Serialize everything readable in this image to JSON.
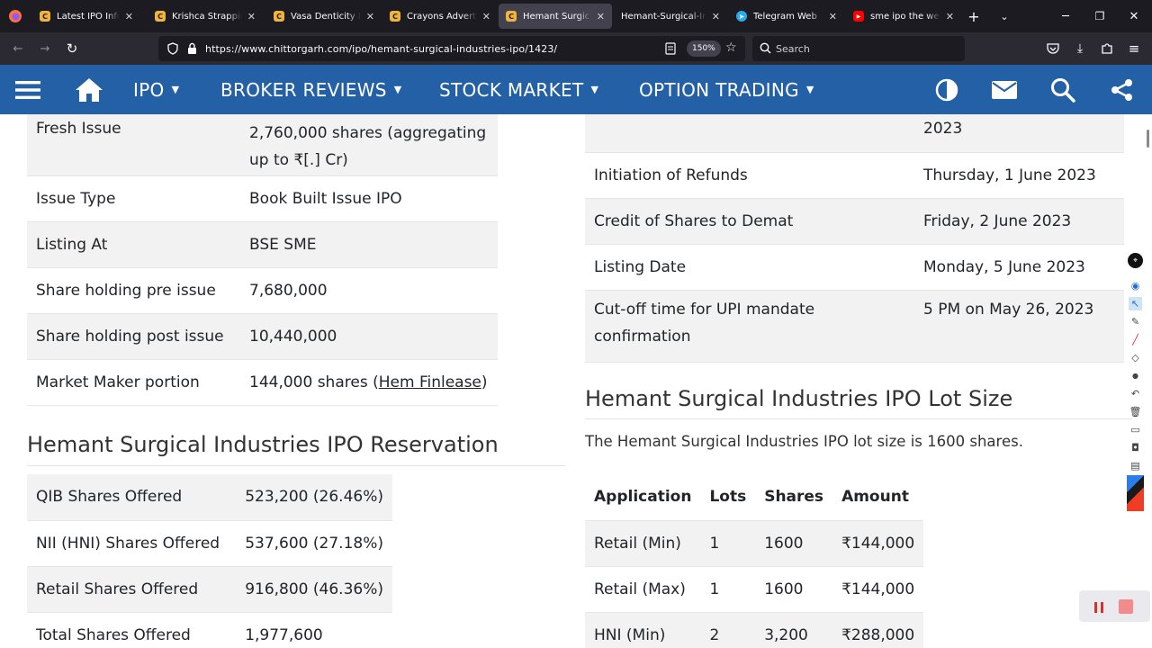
{
  "browser": {
    "tabs": [
      {
        "title": "Latest IPO Informa",
        "fav": "C",
        "favColor": "#f0b43c"
      },
      {
        "title": "Krishca Strapping",
        "fav": "C",
        "favColor": "#f0b43c"
      },
      {
        "title": "Vasa Denticity IPO",
        "fav": "C",
        "favColor": "#f0b43c"
      },
      {
        "title": "Crayons Advertisi",
        "fav": "C",
        "favColor": "#f0b43c"
      },
      {
        "title": "Hemant Surgical I",
        "fav": "C",
        "favColor": "#f0b43c"
      },
      {
        "title": "Hemant-Surgical-Indu",
        "fav": "",
        "favColor": ""
      },
      {
        "title": "Telegram Web",
        "fav": "",
        "favColor": "#2aabee"
      },
      {
        "title": "sme ipo the weal",
        "fav": "",
        "favColor": "#ff0000"
      }
    ],
    "url": "https://www.chittorgarh.com/ipo/hemant-surgical-industries-ipo/1423/",
    "zoom": "150%",
    "search_placeholder": "Search"
  },
  "site_nav": {
    "items": [
      "IPO",
      "BROKER REVIEWS",
      "STOCK MARKET",
      "OPTION TRADING"
    ]
  },
  "issue_table": [
    {
      "label": "Fresh Issue",
      "value": "2,760,000 shares (aggregating up to ₹[.] Cr)"
    },
    {
      "label": "Issue Type",
      "value": "Book Built Issue IPO"
    },
    {
      "label": "Listing At",
      "value": "BSE SME"
    },
    {
      "label": "Share holding pre issue",
      "value": "7,680,000"
    },
    {
      "label": "Share holding post issue",
      "value": "10,440,000"
    },
    {
      "label": "Market Maker portion",
      "value_prefix": "144,000 shares (",
      "value_link": "Hem Finlease",
      "value_suffix": ")"
    }
  ],
  "reservation": {
    "heading": "Hemant Surgical Industries IPO Reservation",
    "rows": [
      {
        "label": "QIB Shares Offered",
        "value": "523,200 (26.46%)"
      },
      {
        "label": "NII (HNI) Shares Offered",
        "value": "537,600 (27.18%)"
      },
      {
        "label": "Retail Shares Offered",
        "value": "916,800 (46.36%)"
      },
      {
        "label": "Total Shares Offered",
        "value": "1,977,600"
      }
    ]
  },
  "timeline": {
    "rows": [
      {
        "label": "",
        "value": "2023"
      },
      {
        "label": "Initiation of Refunds",
        "value": "Thursday, 1 June 2023"
      },
      {
        "label": "Credit of Shares to Demat",
        "value": "Friday, 2 June 2023"
      },
      {
        "label": "Listing Date",
        "value": "Monday, 5 June 2023"
      },
      {
        "label": "Cut-off time for UPI mandate confirmation",
        "value": "5 PM on May 26, 2023"
      }
    ]
  },
  "lot_size": {
    "heading": "Hemant Surgical Industries IPO Lot Size",
    "text": "The Hemant Surgical Industries IPO lot size is 1600 shares.",
    "headers": [
      "Application",
      "Lots",
      "Shares",
      "Amount"
    ],
    "rows": [
      [
        "Retail (Min)",
        "1",
        "1600",
        "₹144,000"
      ],
      [
        "Retail (Max)",
        "1",
        "1600",
        "₹144,000"
      ],
      [
        "HNI (Min)",
        "2",
        "3,200",
        "₹288,000"
      ]
    ]
  },
  "colors": {
    "site_nav_bg": "#2360a5",
    "tab_bar_bg": "#1c1b22",
    "toolbar_bg": "#2b2a33"
  }
}
